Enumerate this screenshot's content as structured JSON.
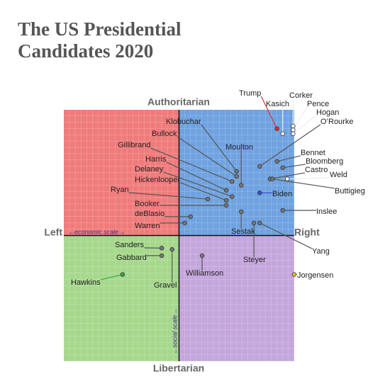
{
  "chart_data": {
    "type": "scatter",
    "title": "The US Presidential Candidates 2020",
    "y_top_label": "Authoritarian",
    "y_bottom_label": "Libertarian",
    "x_left_label": "Left",
    "x_right_label": "Right",
    "x_scale_label": "←economic scale→",
    "y_scale_label": "←social scale→",
    "xlim": [
      -10,
      10
    ],
    "ylim": [
      -10,
      10
    ],
    "grid": true,
    "points": [
      {
        "name": "Trump",
        "x": 8.5,
        "y": 8.5,
        "color": "#e03030"
      },
      {
        "name": "Kasich",
        "x": 9.0,
        "y": 8.1,
        "color": "#ffffff"
      },
      {
        "name": "Corker",
        "x": 9.9,
        "y": 8.7,
        "color": "#ffffff"
      },
      {
        "name": "Pence",
        "x": 9.9,
        "y": 8.4,
        "color": "#ffffff"
      },
      {
        "name": "Hogan",
        "x": 9.9,
        "y": 8.1,
        "color": "#ffffff"
      },
      {
        "name": "O’Rourke",
        "x": 7.0,
        "y": 5.5,
        "color": "#777777"
      },
      {
        "name": "Bennet",
        "x": 8.5,
        "y": 5.9,
        "color": "#777777"
      },
      {
        "name": "Bloomberg",
        "x": 9.0,
        "y": 5.4,
        "color": "#777777"
      },
      {
        "name": "Castro",
        "x": 7.9,
        "y": 4.5,
        "color": "#777777"
      },
      {
        "name": "Weld",
        "x": 9.4,
        "y": 4.5,
        "color": "#ffffff"
      },
      {
        "name": "Buttigieg",
        "x": 8.1,
        "y": 4.5,
        "color": "#777777"
      },
      {
        "name": "Biden",
        "x": 7.0,
        "y": 3.4,
        "color": "#3b50d0"
      },
      {
        "name": "Inslee",
        "x": 9.0,
        "y": 2.0,
        "color": "#777777"
      },
      {
        "name": "Moulton",
        "x": 5.4,
        "y": 4.0,
        "color": "#777777"
      },
      {
        "name": "Klobuchar",
        "x": 5.0,
        "y": 5.1,
        "color": "#777777"
      },
      {
        "name": "Bullock",
        "x": 5.0,
        "y": 4.7,
        "color": "#777777"
      },
      {
        "name": "Gillibrand",
        "x": 4.6,
        "y": 4.3,
        "color": "#777777"
      },
      {
        "name": "Harris",
        "x": 4.1,
        "y": 3.6,
        "color": "#777777"
      },
      {
        "name": "Delaney",
        "x": 4.6,
        "y": 3.1,
        "color": "#777777"
      },
      {
        "name": "Hickenlooper",
        "x": 4.1,
        "y": 2.8,
        "color": "#777777"
      },
      {
        "name": "Ryan",
        "x": 2.5,
        "y": 2.9,
        "color": "#777777"
      },
      {
        "name": "Booker",
        "x": 4.1,
        "y": 2.4,
        "color": "#777777"
      },
      {
        "name": "deBlasio",
        "x": 1.0,
        "y": 1.5,
        "color": "#777777"
      },
      {
        "name": "Warren",
        "x": 0.5,
        "y": 1.0,
        "color": "#777777"
      },
      {
        "name": "Sestak",
        "x": 5.4,
        "y": 1.9,
        "color": "#777777"
      },
      {
        "name": "Yang",
        "x": 7.0,
        "y": 1.0,
        "color": "#777777"
      },
      {
        "name": "Steyer",
        "x": 6.5,
        "y": 1.0,
        "color": "#777777"
      },
      {
        "name": "Sanders",
        "x": -1.5,
        "y": -1.0,
        "color": "#777777"
      },
      {
        "name": "Gabbard",
        "x": -1.5,
        "y": -1.6,
        "color": "#777777"
      },
      {
        "name": "Gravel",
        "x": -0.6,
        "y": -1.1,
        "color": "#777777"
      },
      {
        "name": "Hawkins",
        "x": -4.9,
        "y": -3.1,
        "color": "#2eae4a"
      },
      {
        "name": "Williamson",
        "x": 2.0,
        "y": -1.6,
        "color": "#777777"
      },
      {
        "name": "Jorgensen",
        "x": 10.0,
        "y": -3.1,
        "color": "#f0c020"
      }
    ]
  }
}
